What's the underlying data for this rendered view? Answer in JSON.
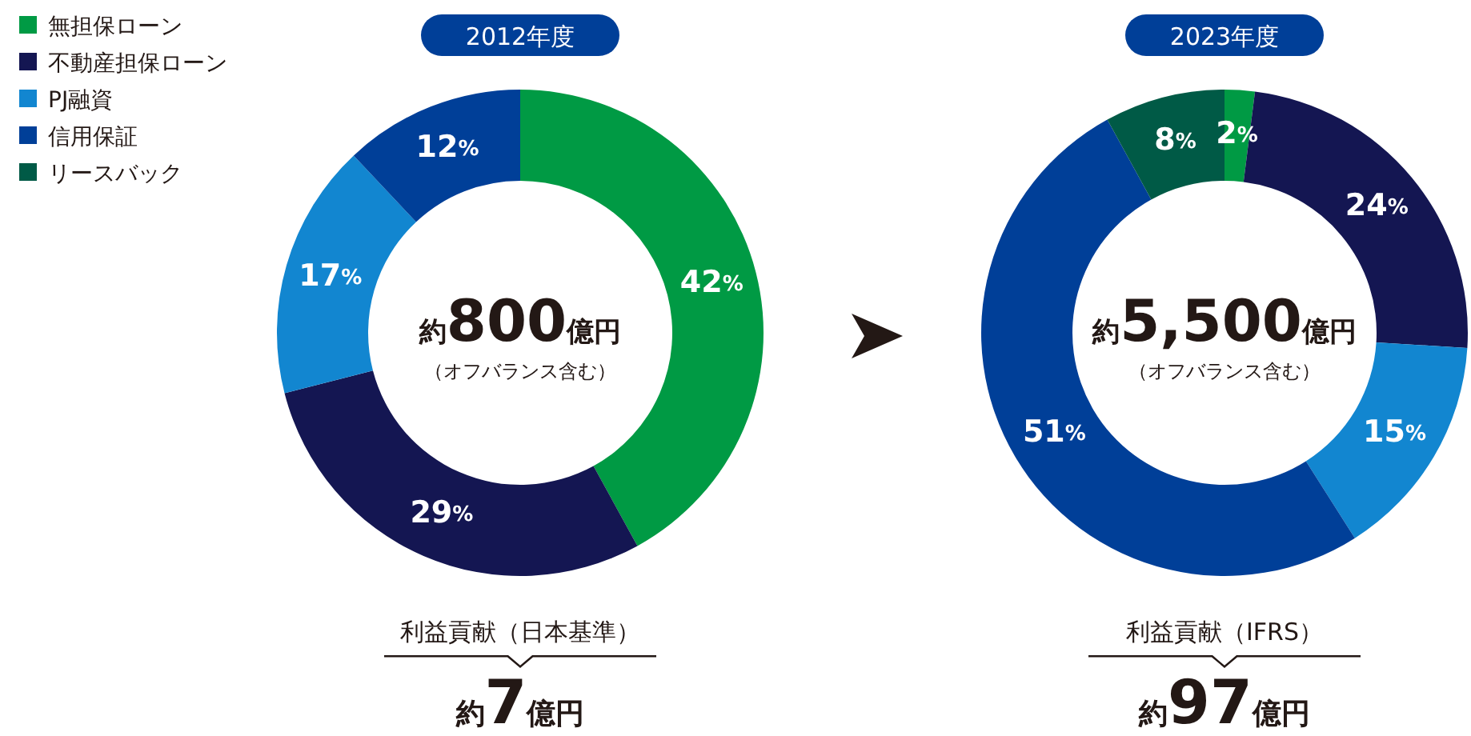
{
  "chart_data": [
    {
      "type": "donut",
      "title": "2012年度",
      "categories": [
        "無担保ローン",
        "不動産担保ローン",
        "PJ融資",
        "信用保証",
        "リースバック"
      ],
      "values": [
        42,
        29,
        17,
        12,
        0
      ],
      "colors": [
        "#009a44",
        "#141652",
        "#1286d0",
        "#003f98",
        "#005a46"
      ],
      "value_labels": [
        "42%",
        "29%",
        "17%",
        "12%",
        null
      ],
      "legend": "top left",
      "annotations": [
        "約800億円",
        "（オフバランス含む）",
        "利益貢献（日本基準）",
        "約7億円"
      ]
    },
    {
      "type": "donut",
      "title": "2023年度",
      "categories": [
        null,
        null,
        null,
        null,
        null
      ],
      "values": [
        2,
        24,
        15,
        51,
        8
      ],
      "colors": [
        "#009a44",
        "#141652",
        "#1286d0",
        "#003f98",
        "#005a46"
      ],
      "value_labels": [
        "2%",
        "24%",
        "15%",
        "51%",
        "8%"
      ],
      "legend": false,
      "annotations": [
        "約5,500億円",
        "（オフバランス含む）",
        "利益貢献（IFRS）",
        "約97億円"
      ]
    }
  ]
}
